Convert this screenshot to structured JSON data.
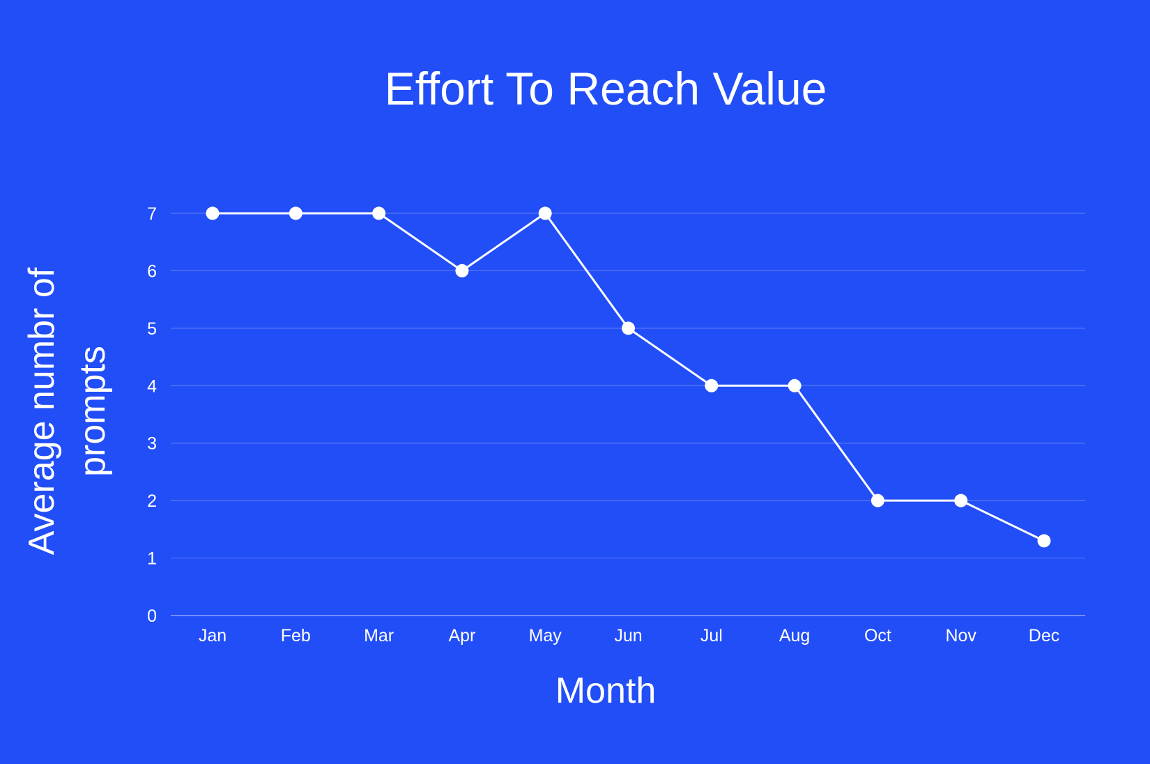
{
  "colors": {
    "background": "#224ef7",
    "foreground": "#ffffff",
    "gridline": "#5a78f6",
    "baseline": "#8ea2f8"
  },
  "chart_data": {
    "type": "line",
    "title": "Effort To Reach Value",
    "xlabel": "Month",
    "ylabel_lines": [
      "Average numbr of",
      "prompts"
    ],
    "categories": [
      "Jan",
      "Feb",
      "Mar",
      "Apr",
      "May",
      "Jun",
      "Jul",
      "Aug",
      "Oct",
      "Nov",
      "Dec"
    ],
    "series": [
      {
        "values": [
          7,
          7,
          7,
          6,
          7,
          5,
          4,
          4,
          2,
          2,
          1.3
        ]
      }
    ],
    "ylim": [
      0,
      7
    ],
    "yticks": [
      0,
      1,
      2,
      3,
      4,
      5,
      6,
      7
    ],
    "grid": true,
    "legend": "none",
    "markers": true
  }
}
